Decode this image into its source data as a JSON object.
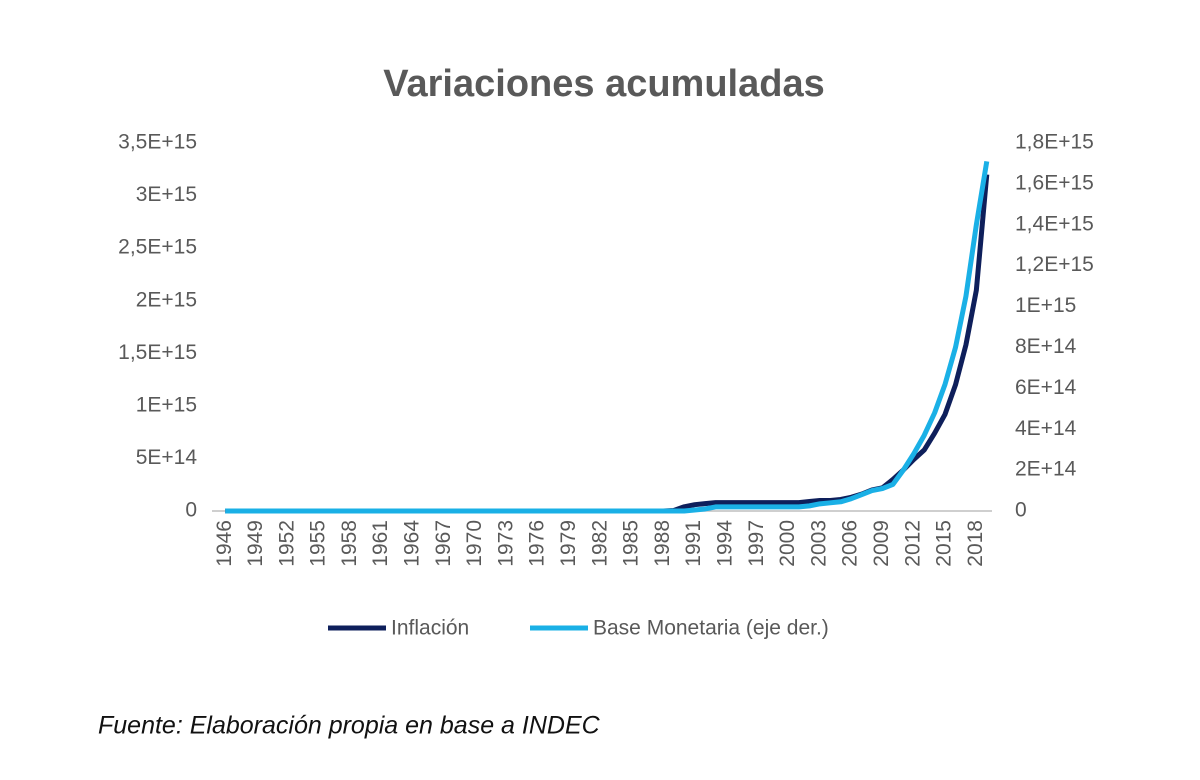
{
  "chart_data": {
    "type": "line",
    "title": "Variaciones acumuladas",
    "source": "Fuente: Elaboración propia en base a INDEC",
    "x": [
      1946,
      1947,
      1948,
      1949,
      1950,
      1951,
      1952,
      1953,
      1954,
      1955,
      1956,
      1957,
      1958,
      1959,
      1960,
      1961,
      1962,
      1963,
      1964,
      1965,
      1966,
      1967,
      1968,
      1969,
      1970,
      1971,
      1972,
      1973,
      1974,
      1975,
      1976,
      1977,
      1978,
      1979,
      1980,
      1981,
      1982,
      1983,
      1984,
      1985,
      1986,
      1987,
      1988,
      1989,
      1990,
      1991,
      1992,
      1993,
      1994,
      1995,
      1996,
      1997,
      1998,
      1999,
      2000,
      2001,
      2002,
      2003,
      2004,
      2005,
      2006,
      2007,
      2008,
      2009,
      2010,
      2011,
      2012,
      2013,
      2014,
      2015,
      2016,
      2017,
      2018,
      2019
    ],
    "xlim": [
      1945.5,
      2019.5
    ],
    "xticks": [
      1946,
      1949,
      1952,
      1955,
      1958,
      1961,
      1964,
      1967,
      1970,
      1973,
      1976,
      1979,
      1982,
      1985,
      1988,
      1991,
      1994,
      1997,
      2000,
      2003,
      2006,
      2009,
      2012,
      2015,
      2018
    ],
    "ylim": [
      0,
      3500000000000000.0
    ],
    "yticks": [
      0,
      {
        "value": 500000000000000.0,
        "label": "5E+14"
      },
      {
        "value": 1000000000000000.0,
        "label": "1E+15"
      },
      {
        "value": 1500000000000000.0,
        "label": "1,5E+15"
      },
      {
        "value": 2000000000000000.0,
        "label": "2E+15"
      },
      {
        "value": 2500000000000000.0,
        "label": "2,5E+15"
      },
      {
        "value": 3000000000000000.0,
        "label": "3E+15"
      },
      {
        "value": 3500000000000000.0,
        "label": "3,5E+15"
      }
    ],
    "y2lim": [
      0,
      1800000000000000.0
    ],
    "y2ticks": [
      0,
      {
        "value": 200000000000000.0,
        "label": "2E+14"
      },
      {
        "value": 400000000000000.0,
        "label": "4E+14"
      },
      {
        "value": 600000000000000.0,
        "label": "6E+14"
      },
      {
        "value": 800000000000000.0,
        "label": "8E+14"
      },
      {
        "value": 1000000000000000.0,
        "label": "1E+15"
      },
      {
        "value": 1200000000000000.0,
        "label": "1,2E+15"
      },
      {
        "value": 1400000000000000.0,
        "label": "1,4E+15"
      },
      {
        "value": 1600000000000000.0,
        "label": "1,6E+15"
      },
      {
        "value": 1800000000000000.0,
        "label": "1,8E+15"
      }
    ],
    "series": [
      {
        "name": "Inflación",
        "color": "#0e1f5b",
        "axis": "y",
        "values": [
          0,
          0,
          0,
          0,
          0,
          0,
          0,
          0,
          0,
          0,
          0,
          0,
          0,
          0,
          0,
          0,
          0,
          0,
          0,
          0,
          0,
          0,
          0,
          0,
          0,
          0,
          0,
          0,
          0,
          0,
          0,
          0,
          0,
          0,
          0,
          0,
          0,
          0,
          0,
          0,
          0,
          0,
          0,
          5000000000000.0,
          40000000000000.0,
          60000000000000.0,
          70000000000000.0,
          80000000000000.0,
          80000000000000.0,
          80000000000000.0,
          80000000000000.0,
          80000000000000.0,
          80000000000000.0,
          80000000000000.0,
          80000000000000.0,
          80000000000000.0,
          90000000000000.0,
          100000000000000.0,
          100000000000000.0,
          110000000000000.0,
          130000000000000.0,
          160000000000000.0,
          200000000000000.0,
          220000000000000.0,
          300000000000000.0,
          390000000000000.0,
          490000000000000.0,
          580000000000000.0,
          740000000000000.0,
          920000000000000.0,
          1200000000000000.0,
          1580000000000000.0,
          2100000000000000.0,
          3200000000000000.0
        ]
      },
      {
        "name": "Base Monetaria (eje der.)",
        "color": "#1ab0e6",
        "axis": "y2",
        "values": [
          0,
          0,
          0,
          0,
          0,
          0,
          0,
          0,
          0,
          0,
          0,
          0,
          0,
          0,
          0,
          0,
          0,
          0,
          0,
          0,
          0,
          0,
          0,
          0,
          0,
          0,
          0,
          0,
          0,
          0,
          0,
          0,
          0,
          0,
          0,
          0,
          0,
          0,
          0,
          0,
          0,
          0,
          0,
          0,
          0,
          5000000000000.0,
          10000000000000.0,
          20000000000000.0,
          20000000000000.0,
          20000000000000.0,
          20000000000000.0,
          20000000000000.0,
          20000000000000.0,
          20000000000000.0,
          20000000000000.0,
          20000000000000.0,
          25000000000000.0,
          35000000000000.0,
          40000000000000.0,
          45000000000000.0,
          60000000000000.0,
          80000000000000.0,
          100000000000000.0,
          110000000000000.0,
          130000000000000.0,
          200000000000000.0,
          280000000000000.0,
          370000000000000.0,
          480000000000000.0,
          620000000000000.0,
          800000000000000.0,
          1050000000000000.0,
          1400000000000000.0,
          1710000000000000.0
        ]
      }
    ]
  }
}
